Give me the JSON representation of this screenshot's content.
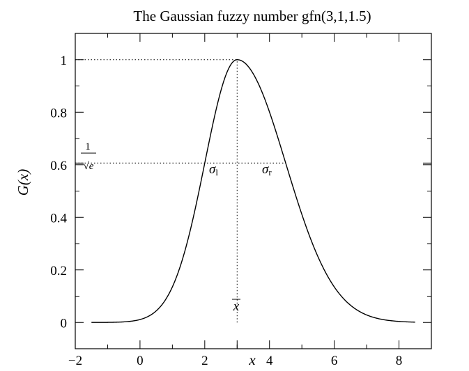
{
  "chart_data": {
    "type": "line",
    "title": "The Gaussian fuzzy number gfn(3,1,1.5)",
    "xlabel": "x",
    "ylabel": "G(x)",
    "xlim": [
      -2,
      9
    ],
    "ylim": [
      -0.1,
      1.1
    ],
    "x_ticks": [
      -2,
      0,
      2,
      4,
      6,
      8
    ],
    "x_tick_labels": [
      "−2",
      "0",
      "2",
      "4",
      "6",
      "8"
    ],
    "y_ticks": [
      0,
      0.2,
      0.4,
      0.6,
      0.8,
      1
    ],
    "y_tick_labels": [
      "0",
      "0.2",
      "0.4",
      "0.6",
      "0.8",
      "1"
    ],
    "grid": false,
    "series": [
      {
        "color": "#000000",
        "mean": 3,
        "sigma_left": 1,
        "sigma_right": 1.5,
        "x_range": [
          -1.5,
          8.5
        ],
        "points": [
          [
            -1.5,
            0.0
          ],
          [
            -1.0,
            0.0003
          ],
          [
            -0.5,
            0.0022
          ],
          [
            0.0,
            0.0111
          ],
          [
            0.5,
            0.0439
          ],
          [
            1.0,
            0.1353
          ],
          [
            1.5,
            0.3247
          ],
          [
            2.0,
            0.6065
          ],
          [
            2.5,
            0.8825
          ],
          [
            3.0,
            1.0
          ],
          [
            3.5,
            0.946
          ],
          [
            4.0,
            0.8007
          ],
          [
            4.5,
            0.6065
          ],
          [
            5.0,
            0.4111
          ],
          [
            5.5,
            0.2494
          ],
          [
            6.0,
            0.1353
          ],
          [
            6.5,
            0.0657
          ],
          [
            7.0,
            0.0286
          ],
          [
            7.5,
            0.0111
          ],
          [
            8.0,
            0.0039
          ],
          [
            8.5,
            0.0012
          ]
        ]
      }
    ],
    "reference_lines": [
      {
        "orientation": "horizontal",
        "y": 1.0,
        "x_to": 3.0,
        "style": "dotted"
      },
      {
        "orientation": "horizontal",
        "y": 0.6065,
        "x_to": 4.5,
        "style": "dotted"
      },
      {
        "orientation": "vertical",
        "x": 3.0,
        "y_from": 0,
        "y_to": 1.0,
        "style": "dotted"
      }
    ],
    "annotations": {
      "one_over_sqrt_e": {
        "y": 0.6065,
        "numerator": "1",
        "denominator": "√e"
      },
      "sigma_left": {
        "symbol": "σ",
        "subscript": "l",
        "x": 2.35,
        "y": 0.55
      },
      "sigma_right": {
        "symbol": "σ",
        "subscript": "r",
        "x": 3.95,
        "y": 0.55
      },
      "x_bar": {
        "text": "x",
        "x": 3.0,
        "y": -0.01
      }
    }
  }
}
